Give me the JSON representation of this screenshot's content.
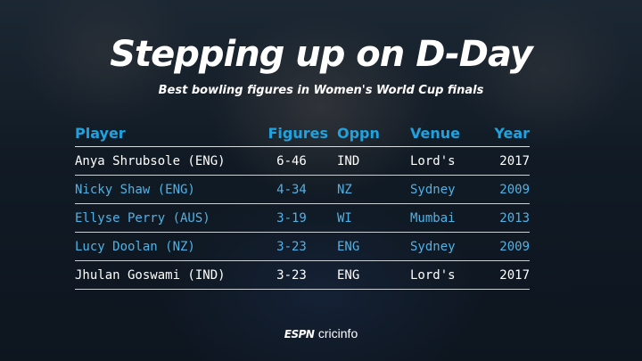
{
  "title": "Stepping up on D-Day",
  "subtitle": "Best bowling figures in Women's World Cup finals",
  "columns": [
    "Player",
    "Figures",
    "Oppn",
    "Venue",
    "Year"
  ],
  "rows": [
    {
      "player": "Anya Shrubsole (ENG)",
      "figures": "6-46",
      "oppn": "IND",
      "venue": "Lord's",
      "year": "2017",
      "highlight": true
    },
    {
      "player": "Nicky Shaw (ENG)",
      "figures": "4-34",
      "oppn": "NZ",
      "venue": "Sydney",
      "year": "2009",
      "highlight": false
    },
    {
      "player": "Ellyse Perry (AUS)",
      "figures": "3-19",
      "oppn": "WI",
      "venue": "Mumbai",
      "year": "2013",
      "highlight": false
    },
    {
      "player": "Lucy Doolan (NZ)",
      "figures": "3-23",
      "oppn": "ENG",
      "venue": "Sydney",
      "year": "2009",
      "highlight": false
    },
    {
      "player": "Jhulan Goswami (IND)",
      "figures": "3-23",
      "oppn": "ENG",
      "venue": "Lord's",
      "year": "2017",
      "highlight": true
    }
  ],
  "logo": {
    "espn": "ESPN",
    "cricinfo": "cricinfo"
  },
  "colors": {
    "header": "#1fa3e0",
    "row_text": "#4fb2e6",
    "highlight_text": "#ffffff"
  }
}
